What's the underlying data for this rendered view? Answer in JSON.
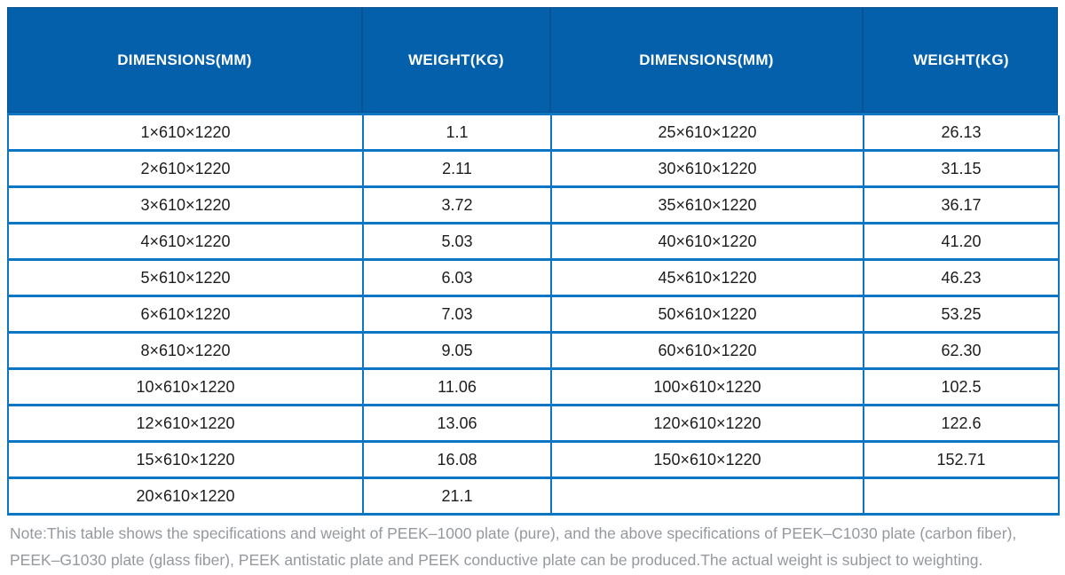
{
  "colors": {
    "header_bg": "#0560AC",
    "header_divider": "#09518F",
    "grid_line": "#0C76C4",
    "body_text": "#1D1D1D",
    "note_text": "#95999E"
  },
  "table": {
    "headers": [
      "DIMENSIONS(MM)",
      "WEIGHT(KG)",
      "DIMENSIONS(MM)",
      "WEIGHT(KG)"
    ],
    "rows": [
      [
        "1×610×1220",
        "1.1",
        "25×610×1220",
        "26.13"
      ],
      [
        "2×610×1220",
        "2.11",
        "30×610×1220",
        "31.15"
      ],
      [
        "3×610×1220",
        "3.72",
        "35×610×1220",
        "36.17"
      ],
      [
        "4×610×1220",
        "5.03",
        "40×610×1220",
        "41.20"
      ],
      [
        "5×610×1220",
        "6.03",
        "45×610×1220",
        "46.23"
      ],
      [
        "6×610×1220",
        "7.03",
        "50×610×1220",
        "53.25"
      ],
      [
        "8×610×1220",
        "9.05",
        "60×610×1220",
        "62.30"
      ],
      [
        "10×610×1220",
        "11.06",
        "100×610×1220",
        "102.5"
      ],
      [
        "12×610×1220",
        "13.06",
        "120×610×1220",
        "122.6"
      ],
      [
        "15×610×1220",
        "16.08",
        "150×610×1220",
        "152.71"
      ],
      [
        "20×610×1220",
        "21.1",
        "",
        ""
      ]
    ]
  },
  "note": {
    "lines": [
      "Note:This table shows the specifications and weight of PEEK–1000 plate (pure), and the above specifications of PEEK–C1030 plate (carbon fiber),",
      "PEEK–G1030 plate (glass fiber), PEEK antistatic plate and PEEK conductive plate can be produced.The actual weight is subject to weighting."
    ]
  }
}
